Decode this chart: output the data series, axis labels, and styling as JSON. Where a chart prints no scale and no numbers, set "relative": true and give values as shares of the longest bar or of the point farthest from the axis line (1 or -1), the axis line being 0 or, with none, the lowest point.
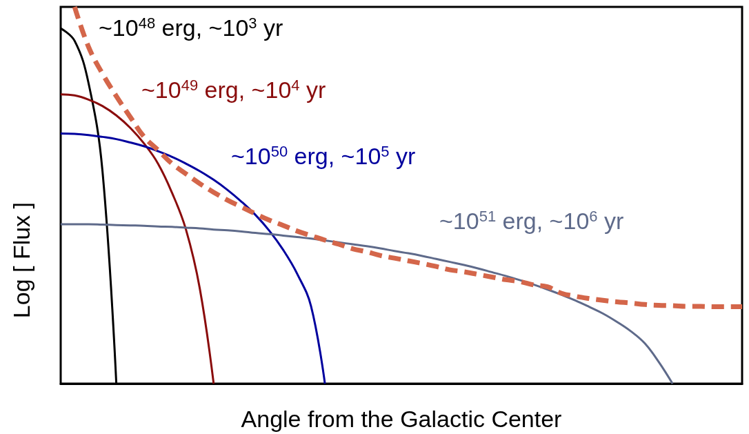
{
  "chart_data": {
    "type": "line",
    "relative": true,
    "xlabel": "Angle from the Galactic Center",
    "ylabel": "Log [ Flux ]",
    "marker": "none",
    "categories": [
      null,
      null,
      null,
      null,
      null,
      null,
      null,
      null,
      null,
      null,
      null,
      null,
      null,
      null,
      null,
      null,
      null,
      null,
      null,
      null,
      null,
      null,
      null,
      null,
      null,
      null,
      null,
      null,
      null,
      null,
      null,
      null,
      null,
      null,
      null,
      null,
      null,
      null,
      null,
      null,
      null,
      null,
      null,
      null,
      null,
      null,
      null,
      null,
      null,
      null
    ],
    "series": [
      {
        "name": "~10$^{48}$ erg, ~10$^{3}$ yr",
        "color": "#000000",
        "values": [
          0.943,
          0.91,
          0.798,
          0.566,
          0,
          null,
          null,
          null,
          null,
          null,
          null,
          null,
          null,
          null,
          null,
          null,
          null,
          null,
          null,
          null,
          null,
          null,
          null,
          null,
          null,
          null,
          null,
          null,
          null,
          null,
          null,
          null,
          null,
          null,
          null,
          null,
          null,
          null,
          null,
          null,
          null,
          null,
          null,
          null,
          null,
          null,
          null,
          null,
          null,
          null
        ]
      },
      {
        "name": "~10$^{49}$ erg, ~10$^{4}$ yr",
        "color": "#8a0c0c",
        "values": [
          0.768,
          0.765,
          0.754,
          0.737,
          0.712,
          0.679,
          0.637,
          0.584,
          0.507,
          0.41,
          0.253,
          0,
          null,
          null,
          null,
          null,
          null,
          null,
          null,
          null,
          null,
          null,
          null,
          null,
          null,
          null,
          null,
          null,
          null,
          null,
          null,
          null,
          null,
          null,
          null,
          null,
          null,
          null,
          null,
          null,
          null,
          null,
          null,
          null,
          null,
          null,
          null,
          null,
          null,
          null
        ]
      },
      {
        "name": "~10$^{50}$ erg, ~10$^{5}$ yr",
        "color": "#00009e",
        "values": [
          0.664,
          0.663,
          0.66,
          0.655,
          0.649,
          0.64,
          0.63,
          0.617,
          0.602,
          0.584,
          0.564,
          0.541,
          0.514,
          0.483,
          0.448,
          0.406,
          0.355,
          0.292,
          0.206,
          0,
          null,
          null,
          null,
          null,
          null,
          null,
          null,
          null,
          null,
          null,
          null,
          null,
          null,
          null,
          null,
          null,
          null,
          null,
          null,
          null,
          null,
          null,
          null,
          null,
          null,
          null,
          null,
          null,
          null,
          null
        ]
      },
      {
        "name": "~10$^{51}$ erg, ~10$^{6}$ yr",
        "color": "#5e6a8a",
        "values": [
          0.423,
          0.423,
          0.423,
          0.422,
          0.421,
          0.42,
          0.419,
          0.417,
          0.416,
          0.414,
          0.412,
          0.409,
          0.407,
          0.404,
          0.4,
          0.397,
          0.393,
          0.389,
          0.385,
          0.38,
          0.375,
          0.37,
          0.365,
          0.359,
          0.352,
          0.346,
          0.339,
          0.331,
          0.323,
          0.315,
          0.306,
          0.296,
          0.286,
          0.275,
          0.263,
          0.25,
          0.236,
          0.221,
          0.204,
          0.186,
          0.164,
          0.139,
          0.107,
          0.058,
          0,
          null,
          null,
          null,
          null,
          null
        ]
      },
      {
        "color": "#d4664a",
        "line_style": "dashed",
        "values": [
          null,
          1.0,
          0.894,
          0.823,
          0.763,
          0.708,
          0.655,
          0.62,
          0.584,
          0.557,
          0.531,
          0.508,
          0.487,
          0.469,
          0.451,
          0.434,
          0.42,
          0.405,
          0.393,
          0.381,
          0.37,
          0.358,
          0.35,
          0.34,
          0.333,
          0.326,
          0.319,
          0.311,
          0.302,
          0.297,
          0.29,
          0.283,
          0.276,
          0.271,
          0.262,
          0.257,
          0.24,
          0.232,
          0.226,
          0.221,
          0.217,
          0.214,
          0.21,
          0.208,
          0.207,
          0.205,
          0.205,
          0.204,
          0.204,
          0.204
        ]
      }
    ]
  }
}
